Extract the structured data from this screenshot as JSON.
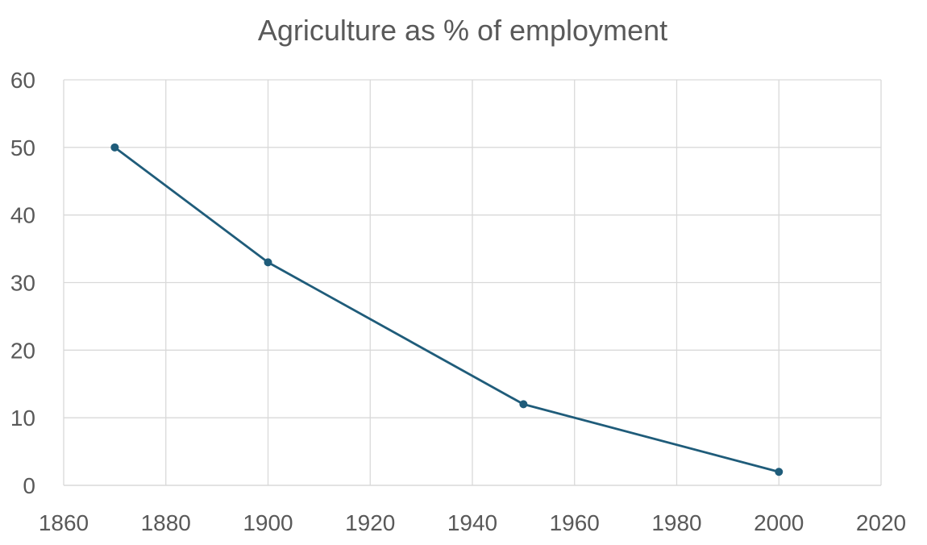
{
  "chart_data": {
    "type": "scatter",
    "title": "Agriculture as % of employment",
    "xlabel": "",
    "ylabel": "",
    "xlim": [
      1860,
      2020
    ],
    "ylim": [
      0,
      60
    ],
    "xticks": [
      1860,
      1880,
      1900,
      1920,
      1940,
      1960,
      1980,
      2000,
      2020
    ],
    "yticks": [
      0,
      10,
      20,
      30,
      40,
      50,
      60
    ],
    "grid": true,
    "legend": "none",
    "series": [
      {
        "color": "#1f5c7a",
        "markers": true,
        "lines": true,
        "points": [
          {
            "x": 1870,
            "y": 50
          },
          {
            "x": 1900,
            "y": 33
          },
          {
            "x": 1950,
            "y": 12
          },
          {
            "x": 2000,
            "y": 2
          }
        ]
      }
    ]
  }
}
